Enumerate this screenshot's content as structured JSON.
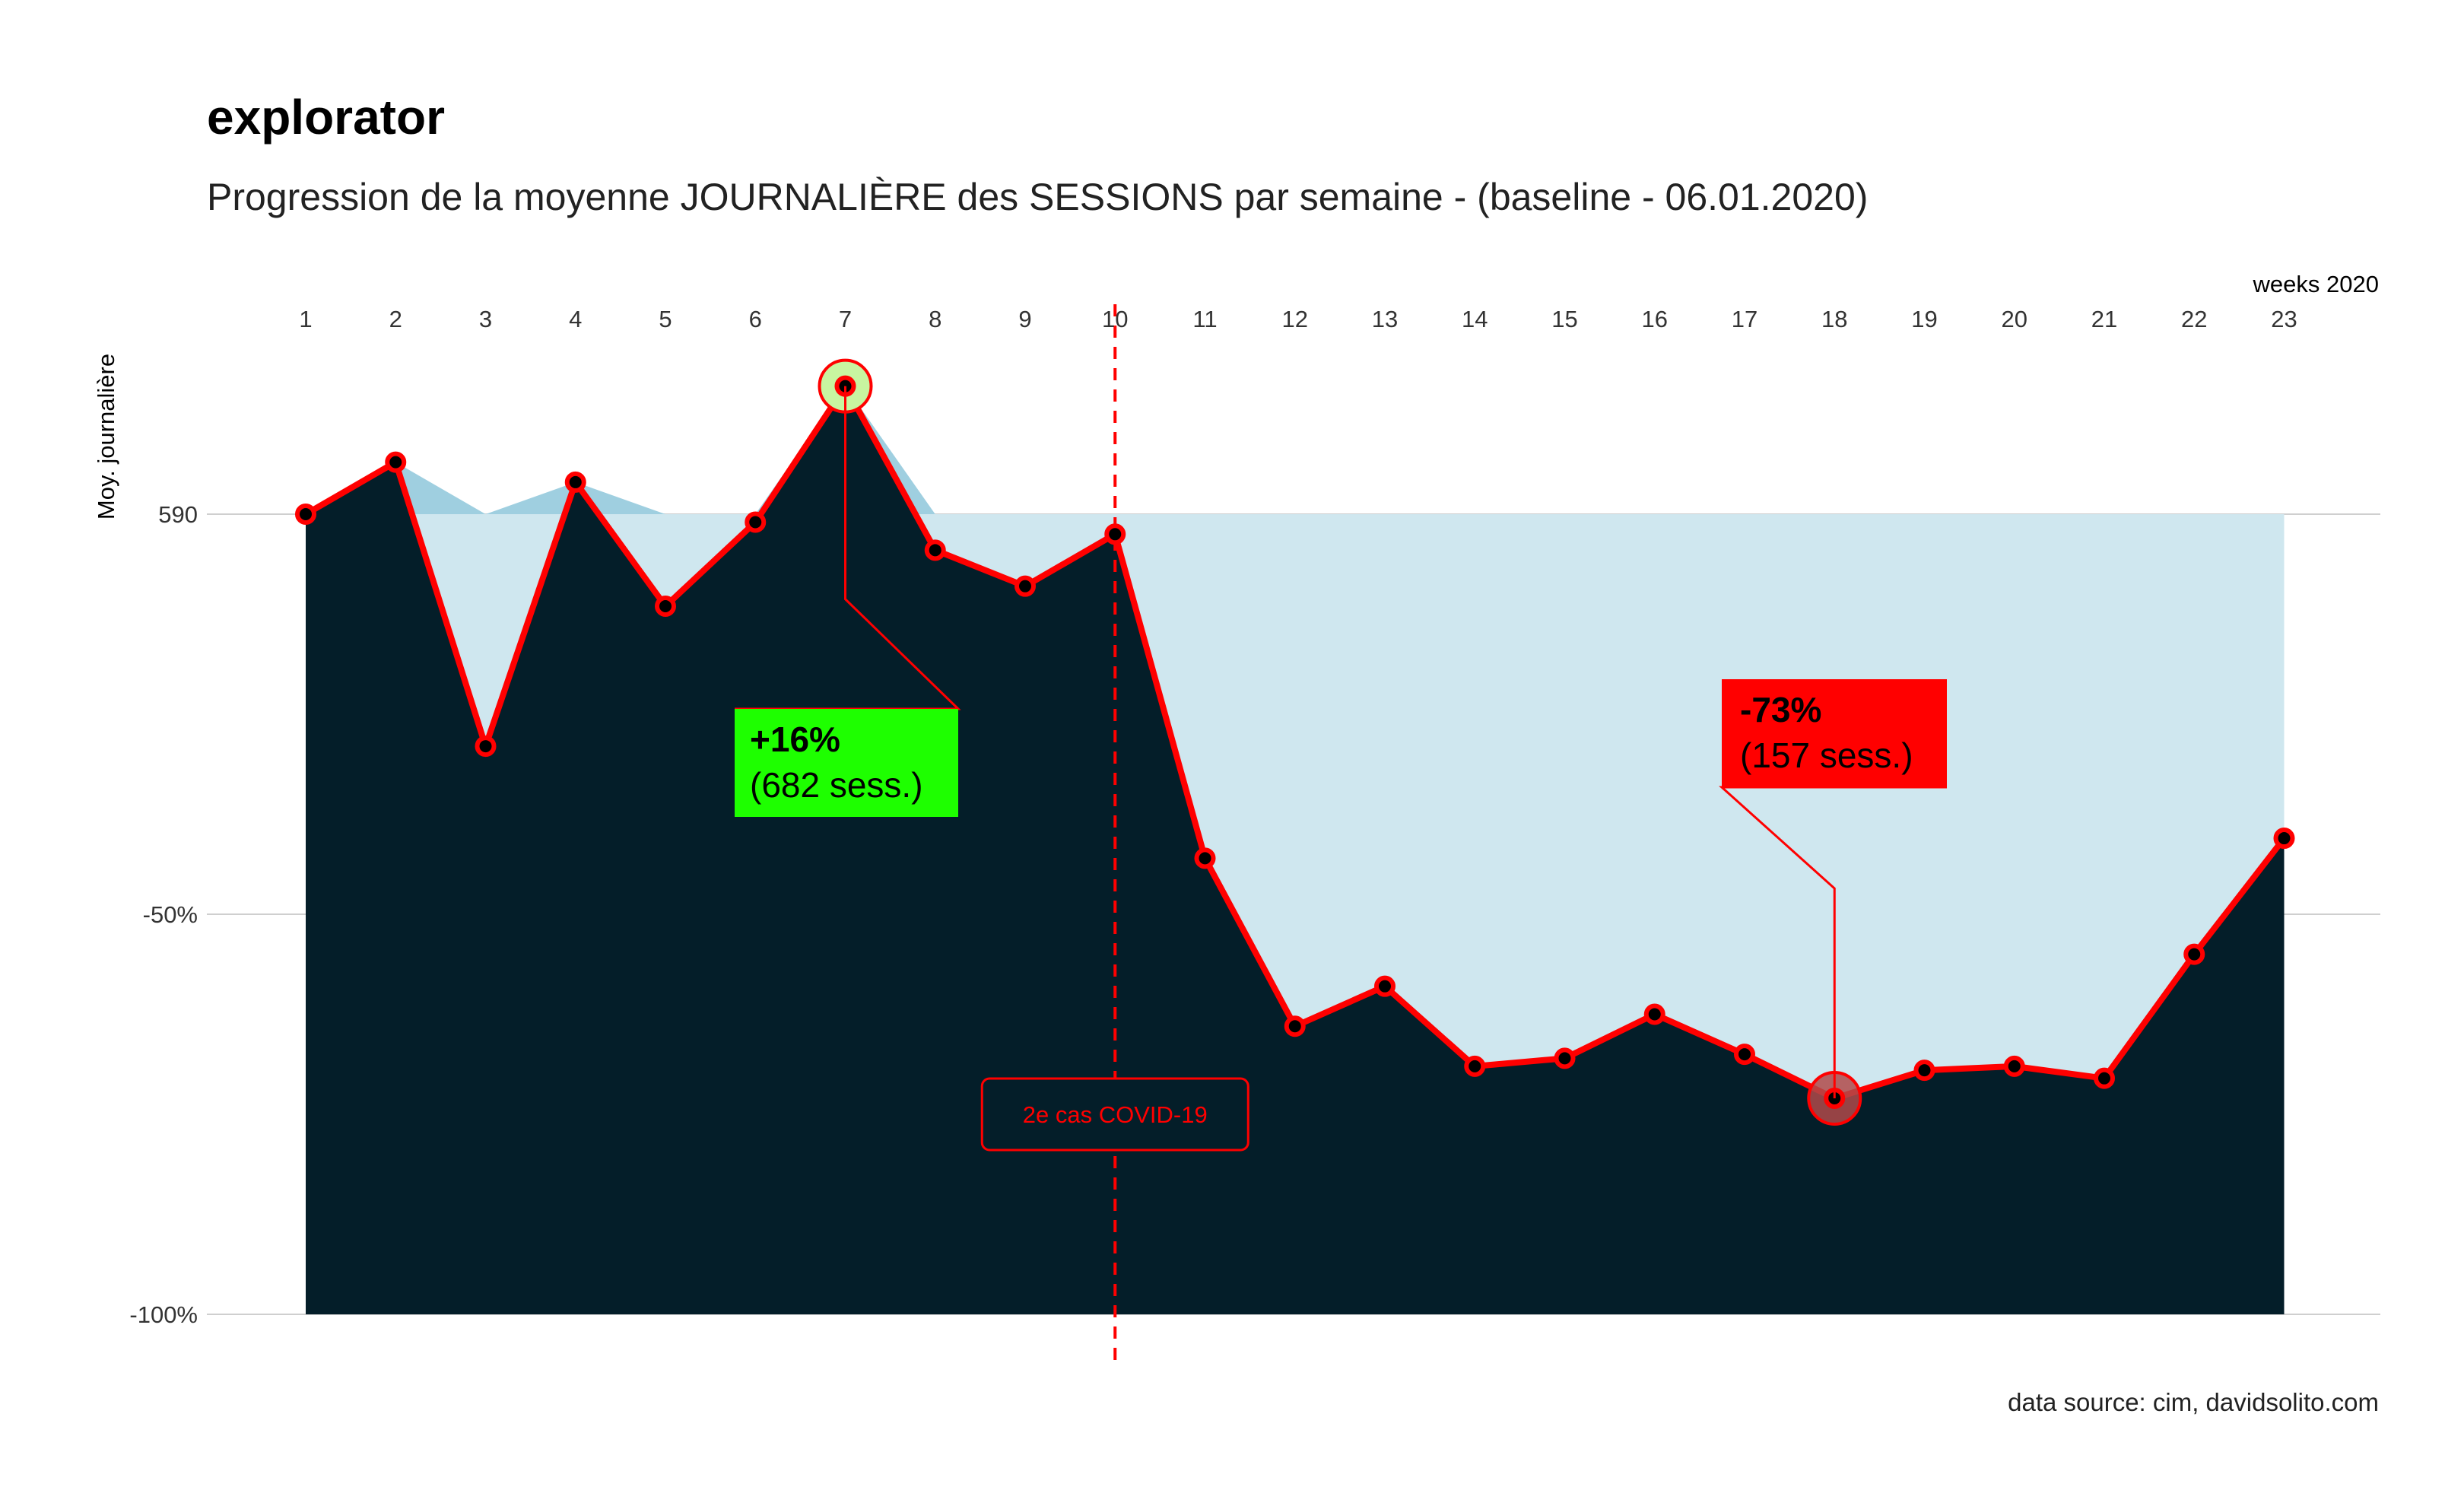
{
  "title": "explorator",
  "subtitle": "Progression de la moyenne JOURNALIÈRE des SESSIONS par semaine - (baseline - 06.01.2020)",
  "caption": "data source: cim, davidsolito.com",
  "colors": {
    "area_dark": "#041e29",
    "baseline_band": "#cfe7ef",
    "above_baseline": "#9fcfe0",
    "line": "#ff0000",
    "max_label_bg": "#1eff00",
    "min_label_bg": "#ff0000",
    "max_highlight": "#c8f5a0"
  },
  "chart_data": {
    "type": "area",
    "x_axis_title": "weeks 2020",
    "y_axis_title": "Moy. journalière",
    "x_position": "top",
    "grid": "horizontal",
    "baseline_value": 590,
    "baseline_label": "590",
    "x": [
      1,
      2,
      3,
      4,
      5,
      6,
      7,
      8,
      9,
      10,
      11,
      12,
      13,
      14,
      15,
      16,
      17,
      18,
      19,
      20,
      21,
      22,
      23
    ],
    "pct_vs_baseline": [
      0,
      6.5,
      -29,
      4,
      -11.5,
      -1,
      16,
      -4.5,
      -9,
      -2.5,
      -43,
      -64,
      -59,
      -69,
      -68,
      -62.5,
      -67.5,
      -73,
      -69.5,
      -69,
      -70.5,
      -55,
      -40.5
    ],
    "y_ticks": [
      {
        "value": 0,
        "label": "590"
      },
      {
        "value": -50,
        "label": "-50%"
      },
      {
        "value": -100,
        "label": "-100%"
      }
    ],
    "ylim": [
      -100,
      22
    ],
    "annotations": {
      "max": {
        "week": 7,
        "pct_label": "+16%",
        "sessions_label": "(682 sess.)"
      },
      "min": {
        "week": 18,
        "pct_label": "-73%",
        "sessions_label": "(157 sess.)"
      },
      "event": {
        "week": 10,
        "label": "2e cas COVID-19"
      }
    }
  }
}
